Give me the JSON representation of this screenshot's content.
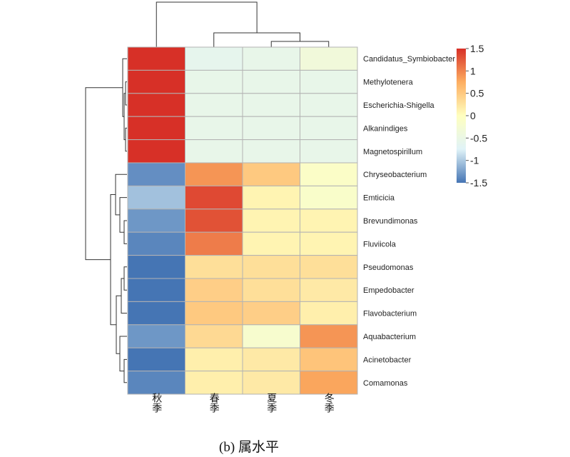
{
  "chart_data": {
    "type": "heatmap",
    "columns": [
      "秋季",
      "春季",
      "夏季",
      "冬季"
    ],
    "rows": [
      "Candidatus_Symbiobacter",
      "Methylotenera",
      "Escherichia-Shigella",
      "Alkanindiges",
      "Magnetospirillum",
      "Chryseobacterium",
      "Emticicia",
      "Brevundimonas",
      "Fluviicola",
      "Pseudomonas",
      "Empedobacter",
      "Flavobacterium",
      "Aquabacterium",
      "Acinetobacter",
      "Comamonas"
    ],
    "values": [
      [
        1.5,
        -0.6,
        -0.55,
        -0.35
      ],
      [
        1.5,
        -0.55,
        -0.55,
        -0.55
      ],
      [
        1.5,
        -0.55,
        -0.55,
        -0.55
      ],
      [
        1.5,
        -0.55,
        -0.55,
        -0.55
      ],
      [
        1.5,
        -0.55,
        -0.55,
        -0.55
      ],
      [
        -1.35,
        0.9,
        0.5,
        -0.1
      ],
      [
        -1.05,
        1.35,
        0.1,
        -0.15
      ],
      [
        -1.3,
        1.3,
        0.1,
        0.1
      ],
      [
        -1.4,
        1.05,
        0.1,
        0.1
      ],
      [
        -1.5,
        0.3,
        0.3,
        0.3
      ],
      [
        -1.5,
        0.45,
        0.3,
        0.2
      ],
      [
        -1.5,
        0.5,
        0.45,
        0.15
      ],
      [
        -1.3,
        0.35,
        -0.2,
        0.9
      ],
      [
        -1.5,
        0.15,
        0.2,
        0.55
      ],
      [
        -1.4,
        0.15,
        0.2,
        0.8
      ]
    ],
    "color_scale": {
      "min": -1.5,
      "max": 1.5,
      "colors": [
        "#4575b4",
        "#e0f3f8",
        "#ffffbf",
        "#fdae61",
        "#d73027"
      ],
      "ticks": [
        "1.5",
        "1",
        "0.5",
        "0",
        "-0.5",
        "-1",
        "-1.5"
      ]
    },
    "row_dendrogram": true,
    "column_dendrogram": true
  },
  "caption": "(b) 属水平"
}
